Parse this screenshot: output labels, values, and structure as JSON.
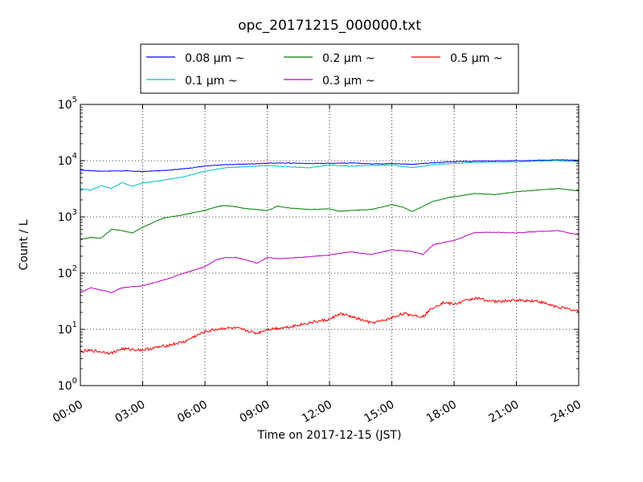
{
  "chart_data": {
    "type": "line",
    "title": "opc_20171215_000000.txt",
    "xlabel": "Time on 2017-12-15 (JST)",
    "ylabel": "Count / L",
    "x_tick_labels": [
      "00:00",
      "03:00",
      "06:00",
      "09:00",
      "12:00",
      "15:00",
      "18:00",
      "21:00",
      "24:00"
    ],
    "y_tick_labels": [
      {
        "base": "10",
        "exp": "0"
      },
      {
        "base": "10",
        "exp": "1"
      },
      {
        "base": "10",
        "exp": "2"
      },
      {
        "base": "10",
        "exp": "3"
      },
      {
        "base": "10",
        "exp": "4"
      },
      {
        "base": "10",
        "exp": "5"
      }
    ],
    "xlim_hours": [
      0,
      24
    ],
    "ylim": [
      1,
      100000
    ],
    "y_scale": "log",
    "grid": true,
    "legend_placement": "top-center",
    "series": [
      {
        "name": "0.08 μm ~",
        "color": "#0000ff",
        "x": [
          0,
          1,
          2,
          3,
          4,
          5,
          6,
          7,
          8,
          9,
          10,
          11,
          12,
          13,
          14,
          15,
          16,
          17,
          18,
          19,
          20,
          21,
          22,
          23,
          24
        ],
        "y": [
          6800,
          6500,
          6600,
          6400,
          6700,
          7200,
          8000,
          8500,
          8700,
          9000,
          9100,
          8900,
          9000,
          9100,
          8800,
          8900,
          8600,
          9200,
          9600,
          9800,
          9900,
          10000,
          10200,
          10300,
          10200
        ]
      },
      {
        "name": "0.1 μm ~",
        "color": "#00bfbf",
        "x": [
          0,
          0.5,
          1,
          1.5,
          2,
          2.5,
          3,
          4,
          5,
          6,
          7,
          8,
          9,
          10,
          11,
          12,
          13,
          14,
          15,
          16,
          17,
          18,
          19,
          20,
          21,
          22,
          23,
          24
        ],
        "y": [
          3200,
          3000,
          3600,
          3200,
          4100,
          3500,
          4000,
          4500,
          5200,
          6500,
          7500,
          7800,
          8200,
          7800,
          7500,
          8400,
          8000,
          8200,
          8400,
          7500,
          8500,
          8900,
          9300,
          9400,
          9600,
          9800,
          10000,
          9600
        ]
      },
      {
        "name": "0.2 μm ~",
        "color": "#008000",
        "x": [
          0,
          0.5,
          1,
          1.5,
          2,
          2.5,
          3,
          3.5,
          4,
          5,
          6,
          6.5,
          7,
          8,
          9,
          9.5,
          10,
          11,
          12,
          12.5,
          13,
          14,
          15,
          15.5,
          16,
          17,
          17.5,
          18,
          19,
          20,
          21,
          22,
          23,
          24
        ],
        "y": [
          400,
          430,
          420,
          600,
          570,
          520,
          650,
          800,
          950,
          1100,
          1300,
          1500,
          1600,
          1400,
          1300,
          1550,
          1450,
          1350,
          1400,
          1250,
          1300,
          1350,
          1650,
          1500,
          1250,
          1900,
          2100,
          2300,
          2600,
          2500,
          2800,
          3000,
          3200,
          2900
        ]
      },
      {
        "name": "0.3 μm ~",
        "color": "#bf00bf",
        "x": [
          0,
          0.5,
          1,
          1.5,
          2,
          3,
          4,
          5,
          6,
          6.5,
          7,
          7.5,
          8,
          8.5,
          9,
          9.5,
          10,
          11,
          12,
          13,
          14,
          15,
          16,
          16.5,
          17,
          17.5,
          18,
          19,
          20,
          21,
          22,
          23,
          24
        ],
        "y": [
          45,
          55,
          50,
          45,
          55,
          60,
          75,
          100,
          130,
          170,
          190,
          190,
          170,
          150,
          190,
          180,
          185,
          195,
          210,
          240,
          215,
          260,
          240,
          215,
          320,
          350,
          380,
          530,
          530,
          520,
          550,
          570,
          480
        ]
      },
      {
        "name": "0.5 μm ~",
        "color": "#ff0000",
        "x": [
          0,
          0.5,
          1,
          1.5,
          2,
          3,
          4,
          5,
          5.5,
          6,
          6.5,
          7,
          7.5,
          8,
          8.5,
          9,
          10,
          11,
          11.5,
          12,
          12.5,
          13,
          14,
          14.5,
          15,
          15.5,
          16,
          16.5,
          17,
          17.5,
          18,
          18.5,
          19,
          20,
          21,
          22,
          22.5,
          23,
          23.5,
          24
        ],
        "y": [
          4,
          4.2,
          4,
          3.8,
          4.5,
          4.3,
          5,
          6,
          7.5,
          9,
          10,
          10.5,
          10.5,
          9.5,
          8.5,
          10,
          11,
          13,
          14,
          15,
          19,
          17,
          13,
          14,
          16,
          19,
          18,
          17,
          25,
          30,
          28,
          32,
          36,
          31,
          33,
          32,
          28,
          25,
          23,
          21
        ]
      }
    ]
  }
}
